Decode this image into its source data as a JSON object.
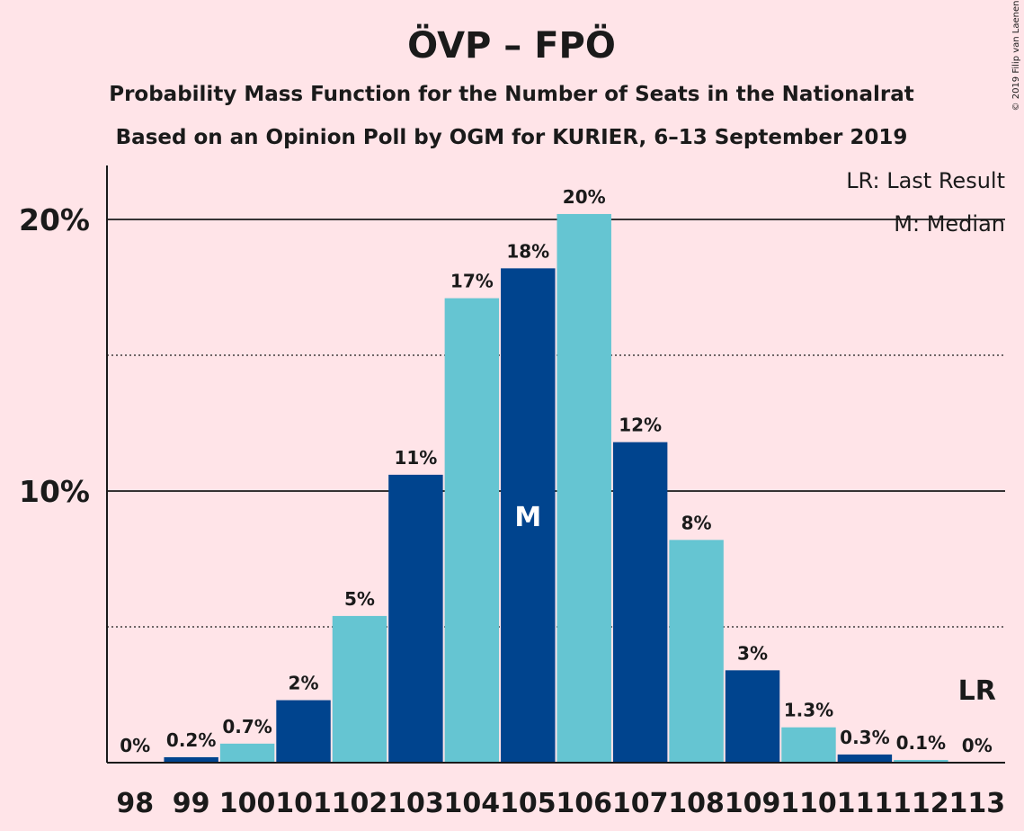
{
  "chart_data": {
    "type": "bar",
    "title": "ÖVP – FPÖ",
    "subtitle_lines": [
      "Probability Mass Function for the Number of Seats in the Nationalrat",
      "Based on an Opinion Poll by OGM for KURIER, 6–13 September 2019"
    ],
    "categories": [
      "98",
      "99",
      "100",
      "101",
      "102",
      "103",
      "104",
      "105",
      "106",
      "107",
      "108",
      "109",
      "110",
      "111",
      "112",
      "113"
    ],
    "values": [
      0,
      0.2,
      0.7,
      2.3,
      5.4,
      10.6,
      17.1,
      18.2,
      20.2,
      11.8,
      8.2,
      3.4,
      1.3,
      0.3,
      0.1,
      0
    ],
    "value_labels": [
      "0%",
      "0.2%",
      "0.7%",
      "2%",
      "5%",
      "11%",
      "17%",
      "18%",
      "20%",
      "12%",
      "8%",
      "3%",
      "1.3%",
      "0.3%",
      "0.1%",
      "0%"
    ],
    "y_ticks": [
      {
        "value": 10,
        "label": "10%"
      },
      {
        "value": 20,
        "label": "20%"
      }
    ],
    "ylim": [
      0,
      22
    ],
    "gridlines": {
      "solid": [
        10,
        20
      ],
      "dotted": [
        5,
        15
      ]
    },
    "median_category": "105",
    "median_marker": "M",
    "last_result_category": "113",
    "last_result_marker": "LR",
    "legend": [
      "LR: Last Result",
      "M: Median"
    ],
    "legend_position": "top-right",
    "colors": {
      "dark": "#00448E",
      "light": "#65C5D2",
      "background": "#FFE4E8",
      "text": "#1a1a1a"
    },
    "copyright": "© 2019 Filip van Laenen"
  }
}
